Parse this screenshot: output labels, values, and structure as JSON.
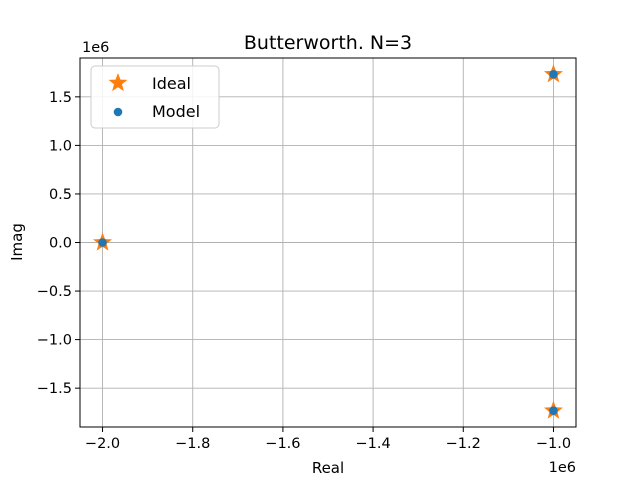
{
  "chart_data": {
    "type": "scatter",
    "title": "Butterworth. N=3",
    "xlabel": "Real",
    "ylabel": "Imag",
    "x_offset_label": "1e6",
    "y_offset_label": "1e6",
    "xlim": [
      -2.05,
      -0.95
    ],
    "ylim": [
      -1.9,
      1.9
    ],
    "x_ticks": [
      -2.0,
      -1.8,
      -1.6,
      -1.4,
      -1.2,
      -1.0
    ],
    "x_tick_labels": [
      "−2.0",
      "−1.8",
      "−1.6",
      "−1.4",
      "−1.2",
      "−1.0"
    ],
    "y_ticks": [
      -1.5,
      -1.0,
      -0.5,
      0.0,
      0.5,
      1.0,
      1.5
    ],
    "y_tick_labels": [
      "−1.5",
      "−1.0",
      "−0.5",
      "0.0",
      "0.5",
      "1.0",
      "1.5"
    ],
    "grid": true,
    "legend_position": "top-left",
    "series": [
      {
        "name": "Ideal",
        "marker": "star",
        "color": "#ff7f0e",
        "points": [
          [
            -1.0,
            1.732
          ],
          [
            -2.0,
            0.0
          ],
          [
            -1.0,
            -1.732
          ]
        ]
      },
      {
        "name": "Model",
        "marker": "circle",
        "color": "#1f77b4",
        "points": [
          [
            -1.0,
            1.732
          ],
          [
            -2.0,
            0.0
          ],
          [
            -1.0,
            -1.732
          ]
        ]
      }
    ]
  }
}
